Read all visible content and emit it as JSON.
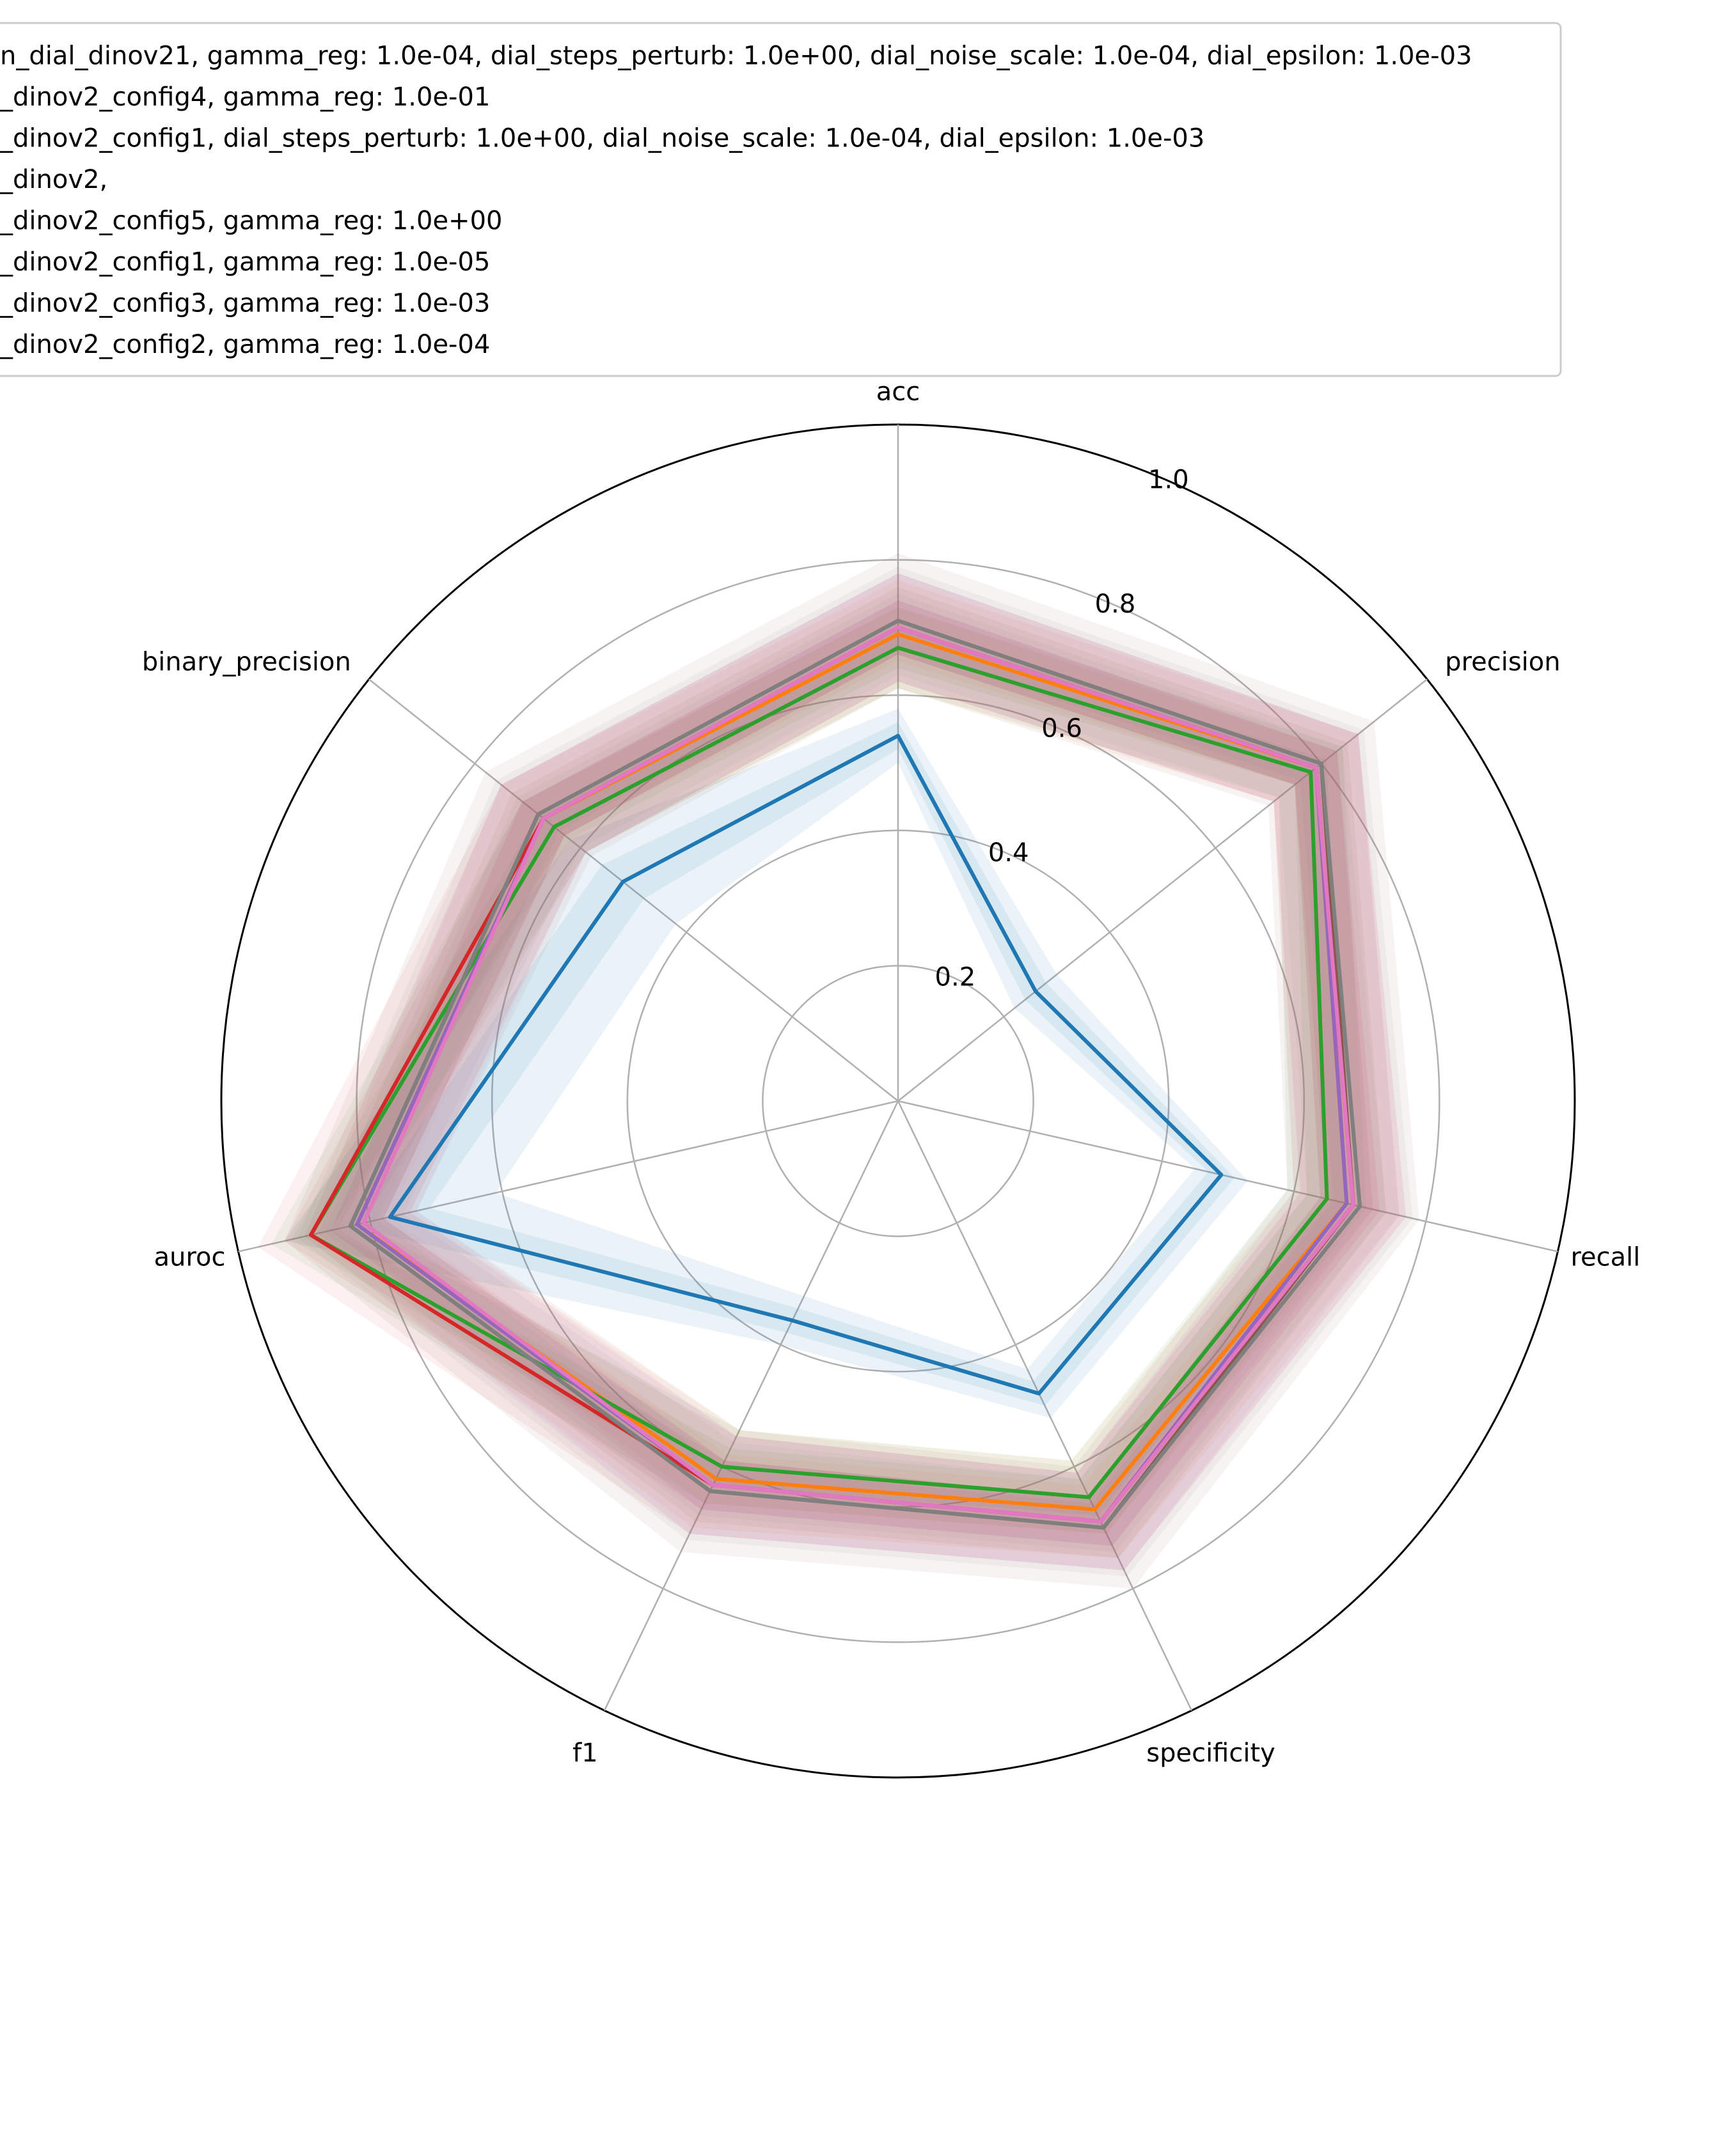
{
  "chart_data": {
    "type": "radar",
    "axes": [
      "acc",
      "precision",
      "recall",
      "specificity",
      "f1",
      "auroc",
      "binary_precision"
    ],
    "rlim": [
      0,
      1.0
    ],
    "radial_ticks": [
      "0.2",
      "0.4",
      "0.6",
      "0.8",
      "1.0"
    ],
    "radial_tick_values": [
      0.2,
      0.4,
      0.6,
      0.8,
      1.0
    ],
    "grid": true,
    "legend_position": "top",
    "legend": [
      {
        "label": "n_dial_dinov21, gamma_reg: 1.0e-04, dial_steps_perturb: 1.0e+00, dial_noise_scale: 1.0e-04, dial_epsilon: 1.0e-03",
        "color": "#1f77b4"
      },
      {
        "label": "_dinov2_config4, gamma_reg: 1.0e-01",
        "color": "#ff7f0e"
      },
      {
        "label": "_dinov2_config1, dial_steps_perturb: 1.0e+00, dial_noise_scale: 1.0e-04, dial_epsilon: 1.0e-03",
        "color": "#2ca02c"
      },
      {
        "label": "_dinov2,",
        "color": "#d62728"
      },
      {
        "label": "_dinov2_config5, gamma_reg: 1.0e+00",
        "color": "#9467bd"
      },
      {
        "label": "_dinov2_config1, gamma_reg: 1.0e-05",
        "color": "#8c564b"
      },
      {
        "label": "_dinov2_config3, gamma_reg: 1.0e-03",
        "color": "#e377c2"
      },
      {
        "label": "_dinov2_config2, gamma_reg: 1.0e-04",
        "color": "#7f7f7f"
      }
    ],
    "series": [
      {
        "color": "#1f77b4",
        "values": [
          0.54,
          0.26,
          0.49,
          0.48,
          0.36,
          0.77,
          0.52
        ],
        "band": 0.02,
        "band_wide": [
          0.0,
          0.0,
          0.0,
          0.0,
          0.0,
          0.08,
          0.04
        ]
      },
      {
        "color": "#ff7f0e",
        "values": [
          0.69,
          0.79,
          0.68,
          0.67,
          0.62,
          0.82,
          0.67
        ],
        "band": 0.04
      },
      {
        "color": "#2ca02c",
        "values": [
          0.67,
          0.78,
          0.65,
          0.65,
          0.6,
          0.89,
          0.65
        ],
        "band": 0.03
      },
      {
        "color": "#d62728",
        "values": [
          0.7,
          0.79,
          0.69,
          0.69,
          0.63,
          0.89,
          0.67
        ],
        "band": 0.04
      },
      {
        "color": "#9467bd",
        "values": [
          0.7,
          0.79,
          0.68,
          0.69,
          0.63,
          0.82,
          0.67
        ],
        "band": 0.04
      },
      {
        "color": "#8c564b",
        "values": [
          0.71,
          0.8,
          0.69,
          0.7,
          0.64,
          0.83,
          0.68
        ],
        "band": 0.05
      },
      {
        "color": "#e377c2",
        "values": [
          0.7,
          0.79,
          0.69,
          0.69,
          0.63,
          0.81,
          0.67
        ],
        "band": 0.04
      },
      {
        "color": "#7f7f7f",
        "values": [
          0.71,
          0.8,
          0.7,
          0.7,
          0.64,
          0.83,
          0.68
        ],
        "band": 0.04
      }
    ]
  }
}
